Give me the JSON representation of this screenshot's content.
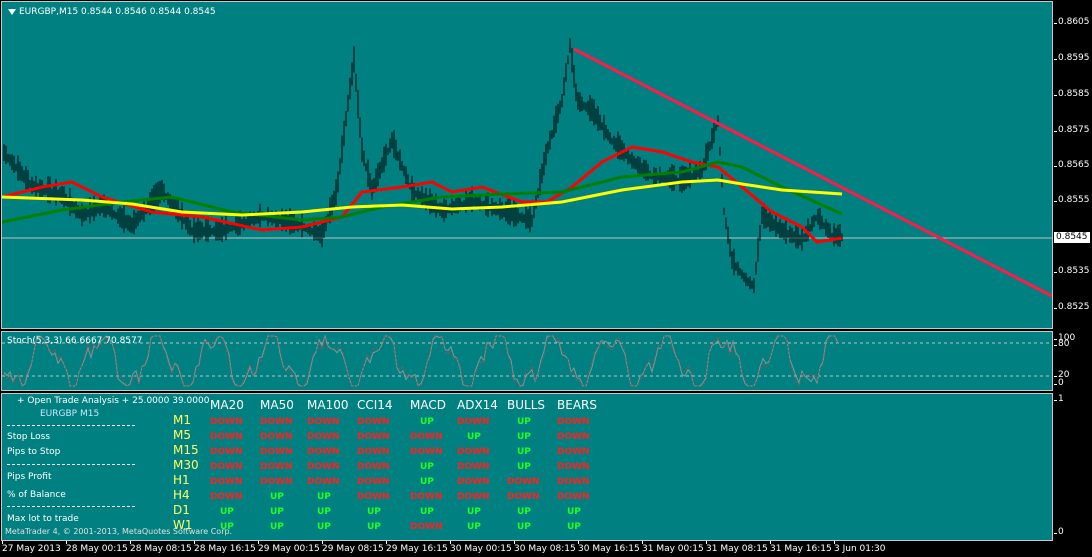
{
  "chart": {
    "title": "EURGBP,M15  0.8544 0.8546 0.8544 0.8545",
    "current_price": "0.8545",
    "price_axis": [
      "0.8605",
      "0.8595",
      "0.8585",
      "0.8575",
      "0.8565",
      "0.8555",
      "0.8545",
      "0.8535",
      "0.8525"
    ],
    "colors": {
      "background": "#008080",
      "candles": "#000000",
      "ma_red": "#ff0000",
      "ma_green": "#008000",
      "ma_yellow": "#ffff00",
      "trendline": "#ff1a4a"
    }
  },
  "stochastic": {
    "label": "Stoch(5,3,3) 66.6667 70.8577",
    "axis": [
      "100",
      "80",
      "20",
      "0"
    ]
  },
  "analysis": {
    "axis": [
      "1",
      "0"
    ],
    "header_line": "+ Open Trade Analysis + 25.0000 39.0000",
    "symbol": "EURGBP  M15",
    "labels": {
      "stop_loss": "Stop Loss",
      "pips_to_stop": "Pips to Stop",
      "pips_profit": "Pips Profit",
      "pct_balance": "% of Balance",
      "max_lot": "Max lot to trade"
    },
    "copyright": "MetaTrader 4, © 2001-2013, MetaQuotes Software Corp.",
    "columns": [
      "MA20",
      "MA50",
      "MA100",
      "CCI14",
      "MACD",
      "ADX14",
      "BULLS",
      "BEARS"
    ],
    "rows": [
      {
        "tf": "M1",
        "vals": [
          "DOWN",
          "DOWN",
          "DOWN",
          "DOWN",
          "UP",
          "DOWN",
          "UP",
          "DOWN"
        ]
      },
      {
        "tf": "M5",
        "vals": [
          "DOWN",
          "DOWN",
          "DOWN",
          "DOWN",
          "DOWN",
          "UP",
          "UP",
          "DOWN"
        ]
      },
      {
        "tf": "M15",
        "vals": [
          "DOWN",
          "DOWN",
          "DOWN",
          "DOWN",
          "DOWN",
          "DOWN",
          "UP",
          "DOWN"
        ]
      },
      {
        "tf": "M30",
        "vals": [
          "DOWN",
          "DOWN",
          "DOWN",
          "DOWN",
          "UP",
          "DOWN",
          "UP",
          "DOWN"
        ]
      },
      {
        "tf": "H1",
        "vals": [
          "DOWN",
          "DOWN",
          "DOWN",
          "DOWN",
          "UP",
          "DOWN",
          "DOWN",
          "DOWN"
        ]
      },
      {
        "tf": "H4",
        "vals": [
          "DOWN",
          "UP",
          "UP",
          "DOWN",
          "DOWN",
          "DOWN",
          "DOWN",
          "DOWN"
        ]
      },
      {
        "tf": "D1",
        "vals": [
          "UP",
          "UP",
          "UP",
          "UP",
          "UP",
          "UP",
          "UP",
          "UP"
        ]
      },
      {
        "tf": "W1",
        "vals": [
          "UP",
          "UP",
          "UP",
          "UP",
          "DOWN",
          "UP",
          "UP",
          "UP"
        ]
      }
    ]
  },
  "time_axis": [
    "27 May 2013",
    "28 May 00:15",
    "28 May 08:15",
    "28 May 16:15",
    "29 May 00:15",
    "29 May 08:15",
    "29 May 16:15",
    "30 May 00:15",
    "30 May 08:15",
    "30 May 16:15",
    "31 May 00:15",
    "31 May 08:15",
    "31 May 16:15",
    "3 Jun 01:30"
  ]
}
